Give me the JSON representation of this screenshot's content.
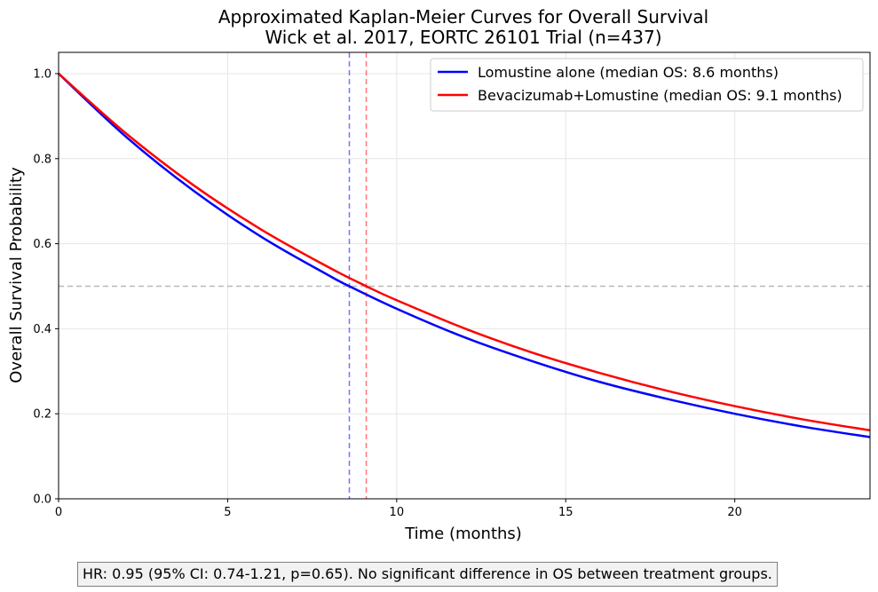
{
  "chart_data": {
    "type": "line",
    "title_line1": "Approximated Kaplan-Meier Curves for Overall Survival",
    "title_line2": "Wick et al. 2017, EORTC 26101 Trial (n=437)",
    "xlabel": "Time (months)",
    "ylabel": "Overall Survival Probability",
    "xlim": [
      0,
      24
    ],
    "ylim": [
      0,
      1.05
    ],
    "x_ticks": [
      0,
      5,
      10,
      15,
      20
    ],
    "x_tick_labels": [
      "0",
      "5",
      "10",
      "15",
      "20"
    ],
    "y_ticks": [
      0.0,
      0.2,
      0.4,
      0.6,
      0.8,
      1.0
    ],
    "y_tick_labels": [
      "0.0",
      "0.2",
      "0.4",
      "0.6",
      "0.8",
      "1.0"
    ],
    "grid": true,
    "legend_position": "top-right",
    "series": [
      {
        "name": "Lomustine alone (median OS: 8.6 months)",
        "color": "#0000ff",
        "x": [
          0,
          2,
          4,
          6,
          8,
          8.6,
          10,
          12,
          14,
          16,
          18,
          20,
          22,
          24
        ],
        "y": [
          1.0,
          0.851,
          0.724,
          0.616,
          0.525,
          0.5,
          0.447,
          0.38,
          0.324,
          0.275,
          0.235,
          0.2,
          0.17,
          0.145
        ]
      },
      {
        "name": "Bevacizumab+Lomustine (median OS: 9.1 months)",
        "color": "#ff0000",
        "x": [
          0,
          2,
          4,
          6,
          8,
          9.1,
          10,
          12,
          14,
          16,
          18,
          20,
          22,
          24
        ],
        "y": [
          1.0,
          0.859,
          0.737,
          0.633,
          0.544,
          0.5,
          0.467,
          0.401,
          0.344,
          0.296,
          0.254,
          0.218,
          0.187,
          0.161
        ]
      }
    ],
    "reference_lines": [
      {
        "orientation": "horizontal",
        "value": 0.5,
        "color": "#808080",
        "style": "dashed"
      },
      {
        "orientation": "vertical",
        "value": 8.6,
        "color": "#0000ff",
        "style": "dashed"
      },
      {
        "orientation": "vertical",
        "value": 9.1,
        "color": "#ff0000",
        "style": "dashed"
      }
    ]
  },
  "footnote": "HR: 0.95 (95% CI: 0.74-1.21, p=0.65). No significant difference in OS between treatment groups."
}
